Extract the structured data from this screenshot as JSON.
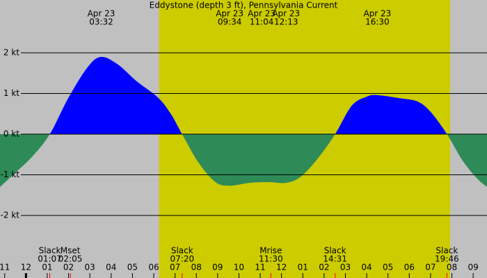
{
  "chart_data": {
    "type": "area",
    "title": "Eddystone (depth 3 ft), Pennsylvania Current",
    "background_color": "#c0c0c0",
    "daylight_color": "#cccc00",
    "daylight": [
      6.25,
      19.92
    ],
    "positive_color": "#0000ff",
    "negative_color": "#2e8b57",
    "grid": true,
    "xlim": [
      -1.22,
      21.65
    ],
    "ylim": [
      -3.54,
      3.3
    ],
    "x": [
      -1.22,
      -0.5,
      0.3,
      1.12,
      2.0,
      2.9,
      3.53,
      4.3,
      5.2,
      6.2,
      6.8,
      7.33,
      8.1,
      8.9,
      9.57,
      10.5,
      11.4,
      12.2,
      12.9,
      13.7,
      14.52,
      15.3,
      16.0,
      16.5,
      17.6,
      18.4,
      19.0,
      19.77,
      20.5,
      21.2,
      21.65
    ],
    "values": [
      -1.3,
      -0.95,
      -0.55,
      0,
      0.9,
      1.65,
      1.9,
      1.72,
      1.3,
      0.9,
      0.5,
      0,
      -0.7,
      -1.18,
      -1.27,
      -1.2,
      -1.18,
      -1.2,
      -1.05,
      -0.6,
      0,
      0.7,
      0.92,
      0.96,
      0.88,
      0.8,
      0.55,
      0,
      -0.65,
      -1.1,
      -1.3
    ],
    "yticks": [
      {
        "value": 2,
        "label": "2 kt"
      },
      {
        "value": 1,
        "label": "1 kt"
      },
      {
        "value": 0,
        "label": "0 kt"
      },
      {
        "value": -1,
        "label": "-1 kt"
      },
      {
        "value": -2,
        "label": "-2 kt"
      }
    ],
    "xticks": [
      {
        "value": -1,
        "label": "11"
      },
      {
        "value": 0,
        "label": "12"
      },
      {
        "value": 1,
        "label": "01"
      },
      {
        "value": 2,
        "label": "02"
      },
      {
        "value": 3,
        "label": "03"
      },
      {
        "value": 4,
        "label": "04"
      },
      {
        "value": 5,
        "label": "05"
      },
      {
        "value": 6,
        "label": "06"
      },
      {
        "value": 7,
        "label": "07"
      },
      {
        "value": 8,
        "label": "08"
      },
      {
        "value": 9,
        "label": "09"
      },
      {
        "value": 10,
        "label": "10"
      },
      {
        "value": 11,
        "label": "11"
      },
      {
        "value": 12,
        "label": "12"
      },
      {
        "value": 13,
        "label": "01"
      },
      {
        "value": 14,
        "label": "02"
      },
      {
        "value": 15,
        "label": "03"
      },
      {
        "value": 16,
        "label": "04"
      },
      {
        "value": 17,
        "label": "05"
      },
      {
        "value": 18,
        "label": "06"
      },
      {
        "value": 19,
        "label": "07"
      },
      {
        "value": 20,
        "label": "08"
      },
      {
        "value": 21,
        "label": "09"
      }
    ],
    "top_events": [
      {
        "date": "Apr 23",
        "time": "03:32"
      },
      {
        "date": "Apr 23",
        "time": "09:34"
      },
      {
        "date": "Apr 23",
        "time": "11:04"
      },
      {
        "date": "Apr 23",
        "time": "12:13"
      },
      {
        "date": "Apr 23",
        "time": "16:30"
      }
    ],
    "bottom_events": [
      {
        "label": "Slack",
        "time": "01:07"
      },
      {
        "label": "Mset",
        "time": "02:05"
      },
      {
        "label": "Slack",
        "time": "07:20"
      },
      {
        "label": "Mrise",
        "time": "11:30"
      },
      {
        "label": "Slack",
        "time": "14:31"
      },
      {
        "label": "Slack",
        "time": "19:46"
      }
    ]
  }
}
